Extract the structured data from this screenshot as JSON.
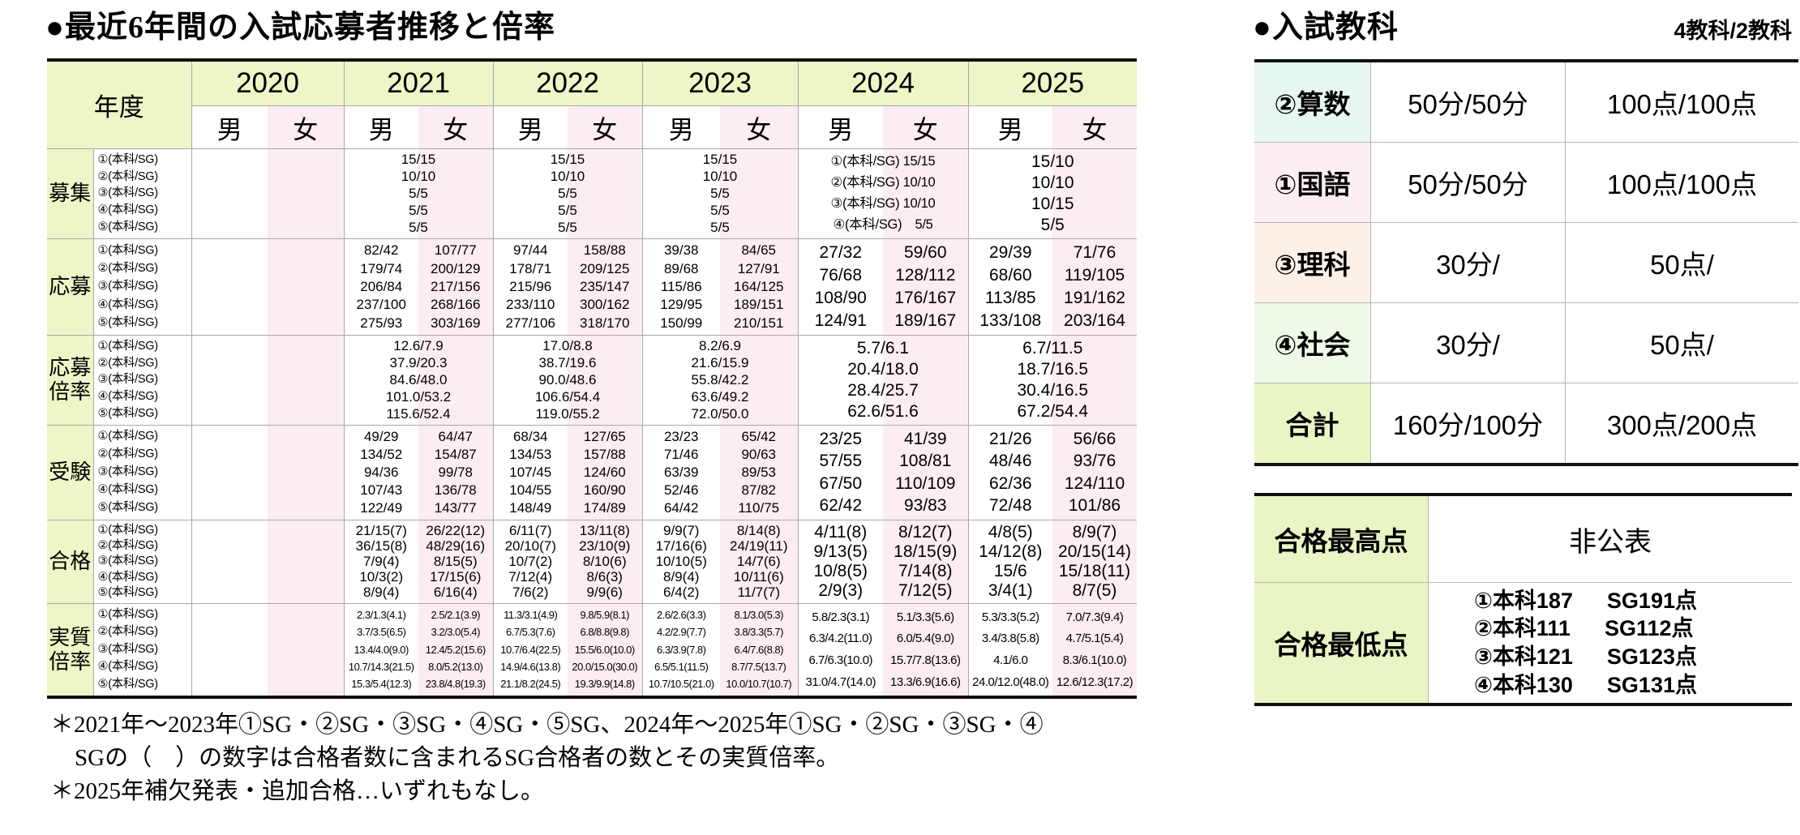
{
  "main": {
    "title": "●最近6年間の入試応募者推移と倍率",
    "table": {
      "header": {
        "year_label": "年度",
        "male": "男",
        "female": "女"
      },
      "years": [
        "2020",
        "2021",
        "2022",
        "2023",
        "2024",
        "2025"
      ],
      "sublabels": [
        "①(本科/SG)",
        "②(本科/SG)",
        "③(本科/SG)",
        "④(本科/SG)",
        "⑤(本科/SG)"
      ],
      "sections": [
        {
          "id": "recruitment",
          "label": "募集",
          "years": {
            "2020": {
              "mode": "span",
              "lines": []
            },
            "2021": {
              "mode": "span",
              "lines": [
                "15/15",
                "10/10",
                "5/5",
                "5/5",
                "5/5"
              ]
            },
            "2022": {
              "mode": "span",
              "lines": [
                "15/15",
                "10/10",
                "5/5",
                "5/5",
                "5/5"
              ]
            },
            "2023": {
              "mode": "span",
              "lines": [
                "15/15",
                "10/10",
                "5/5",
                "5/5",
                "5/5"
              ]
            },
            "2024": {
              "mode": "span",
              "lines": [
                "①(本科/SG) 15/15",
                "②(本科/SG) 10/10",
                "③(本科/SG) 10/10",
                "④(本科/SG)　5/5"
              ]
            },
            "2025": {
              "mode": "span",
              "lines": [
                "15/10",
                "10/10",
                "10/15",
                "5/5"
              ]
            }
          }
        },
        {
          "id": "applicants",
          "label": "応募",
          "years": {
            "2020": {
              "mode": "mf",
              "m": [],
              "f": []
            },
            "2021": {
              "mode": "mf",
              "m": [
                "82/42",
                "179/74",
                "206/84",
                "237/100",
                "275/93"
              ],
              "f": [
                "107/77",
                "200/129",
                "217/156",
                "268/166",
                "303/169"
              ]
            },
            "2022": {
              "mode": "mf",
              "m": [
                "97/44",
                "178/71",
                "215/96",
                "233/110",
                "277/106"
              ],
              "f": [
                "158/88",
                "209/125",
                "235/147",
                "300/162",
                "318/170"
              ]
            },
            "2023": {
              "mode": "mf",
              "m": [
                "39/38",
                "89/68",
                "115/86",
                "129/95",
                "150/99"
              ],
              "f": [
                "84/65",
                "127/91",
                "164/125",
                "189/151",
                "210/151"
              ]
            },
            "2024": {
              "mode": "mf",
              "m": [
                "27/32",
                "76/68",
                "108/90",
                "124/91"
              ],
              "f": [
                "59/60",
                "128/112",
                "176/167",
                "189/167"
              ]
            },
            "2025": {
              "mode": "mf",
              "m": [
                "29/39",
                "68/60",
                "113/85",
                "133/108"
              ],
              "f": [
                "71/76",
                "119/105",
                "191/162",
                "203/164"
              ]
            }
          }
        },
        {
          "id": "application-ratio",
          "label": "応募倍率",
          "years": {
            "2020": {
              "mode": "span",
              "lines": []
            },
            "2021": {
              "mode": "span",
              "lines": [
                "12.6/7.9",
                "37.9/20.3",
                "84.6/48.0",
                "101.0/53.2",
                "115.6/52.4"
              ]
            },
            "2022": {
              "mode": "span",
              "lines": [
                "17.0/8.8",
                "38.7/19.6",
                "90.0/48.6",
                "106.6/54.4",
                "119.0/55.2"
              ]
            },
            "2023": {
              "mode": "span",
              "lines": [
                "8.2/6.9",
                "21.6/15.9",
                "55.8/42.2",
                "63.6/49.2",
                "72.0/50.0"
              ]
            },
            "2024": {
              "mode": "span",
              "lines": [
                "5.7/6.1",
                "20.4/18.0",
                "28.4/25.7",
                "62.6/51.6"
              ]
            },
            "2025": {
              "mode": "span",
              "lines": [
                "6.7/11.5",
                "18.7/16.5",
                "30.4/16.5",
                "67.2/54.4"
              ]
            }
          }
        },
        {
          "id": "examinees",
          "label": "受験",
          "years": {
            "2020": {
              "mode": "mf",
              "m": [],
              "f": []
            },
            "2021": {
              "mode": "mf",
              "m": [
                "49/29",
                "134/52",
                "94/36",
                "107/43",
                "122/49"
              ],
              "f": [
                "64/47",
                "154/87",
                "99/78",
                "136/78",
                "143/77"
              ]
            },
            "2022": {
              "mode": "mf",
              "m": [
                "68/34",
                "134/53",
                "107/45",
                "104/55",
                "148/49"
              ],
              "f": [
                "127/65",
                "157/88",
                "124/60",
                "160/90",
                "174/89"
              ]
            },
            "2023": {
              "mode": "mf",
              "m": [
                "23/23",
                "71/46",
                "63/39",
                "52/46",
                "64/42"
              ],
              "f": [
                "65/42",
                "90/63",
                "89/53",
                "87/82",
                "110/75"
              ]
            },
            "2024": {
              "mode": "mf",
              "m": [
                "23/25",
                "57/55",
                "67/50",
                "62/42"
              ],
              "f": [
                "41/39",
                "108/81",
                "110/109",
                "93/83"
              ]
            },
            "2025": {
              "mode": "mf",
              "m": [
                "21/26",
                "48/46",
                "62/36",
                "72/48"
              ],
              "f": [
                "56/66",
                "93/76",
                "124/110",
                "101/86"
              ]
            }
          }
        },
        {
          "id": "accepted",
          "label": "合格",
          "years": {
            "2020": {
              "mode": "mf",
              "m": [],
              "f": []
            },
            "2021": {
              "mode": "mf",
              "m": [
                "21/15(7)",
                "36/15(8)",
                "7/9(4)",
                "10/3(2)",
                "8/9(4)"
              ],
              "f": [
                "26/22(12)",
                "48/29(16)",
                "8/15(5)",
                "17/15(6)",
                "6/16(4)"
              ]
            },
            "2022": {
              "mode": "mf",
              "m": [
                "6/11(7)",
                "20/10(7)",
                "10/7(2)",
                "7/12(4)",
                "7/6(2)"
              ],
              "f": [
                "13/11(8)",
                "23/10(9)",
                "8/10(6)",
                "8/6(3)",
                "9/9(6)"
              ]
            },
            "2023": {
              "mode": "mf",
              "m": [
                "9/9(7)",
                "17/16(6)",
                "10/10(5)",
                "8/9(4)",
                "6/4(2)"
              ],
              "f": [
                "8/14(8)",
                "24/19(11)",
                "14/7(6)",
                "10/11(6)",
                "11/7(7)"
              ]
            },
            "2024": {
              "mode": "mf",
              "m": [
                "4/11(8)",
                "9/13(5)",
                "10/8(5)",
                "2/9(3)"
              ],
              "f": [
                "8/12(7)",
                "18/15(9)",
                "7/14(8)",
                "7/12(5)"
              ]
            },
            "2025": {
              "mode": "mf",
              "m": [
                "4/8(5)",
                "14/12(8)",
                "15/6",
                "3/4(1)"
              ],
              "f": [
                "8/9(7)",
                "20/15(14)",
                "15/18(11)",
                "8/7(5)"
              ]
            }
          }
        },
        {
          "id": "actual-ratio",
          "label": "実質倍率",
          "years": {
            "2020": {
              "mode": "mf",
              "m": [],
              "f": []
            },
            "2021": {
              "mode": "mf",
              "m": [
                "2.3/1.3(4.1)",
                "3.7/3.5(6.5)",
                "13.4/4.0(9.0)",
                "10.7/14.3(21.5)",
                "15.3/5.4(12.3)"
              ],
              "f": [
                "2.5/2.1(3.9)",
                "3.2/3.0(5.4)",
                "12.4/5.2(15.6)",
                "8.0/5.2(13.0)",
                "23.8/4.8(19.3)"
              ]
            },
            "2022": {
              "mode": "mf",
              "m": [
                "11.3/3.1(4.9)",
                "6.7/5.3(7.6)",
                "10.7/6.4(22.5)",
                "14.9/4.6(13.8)",
                "21.1/8.2(24.5)"
              ],
              "f": [
                "9.8/5.9(8.1)",
                "6.8/8.8(9.8)",
                "15.5/6.0(10.0)",
                "20.0/15.0(30.0)",
                "19.3/9.9(14.8)"
              ]
            },
            "2023": {
              "mode": "mf",
              "m": [
                "2.6/2.6(3.3)",
                "4.2/2.9(7.7)",
                "6.3/3.9(7.8)",
                "6.5/5.1(11.5)",
                "10.7/10.5(21.0)"
              ],
              "f": [
                "8.1/3.0(5.3)",
                "3.8/3.3(5.7)",
                "6.4/7.6(8.8)",
                "8.7/7.5(13.7)",
                "10.0/10.7(10.7)"
              ]
            },
            "2024": {
              "mode": "mf",
              "m": [
                "5.8/2.3(3.1)",
                "6.3/4.2(11.0)",
                "6.7/6.3(10.0)",
                "31.0/4.7(14.0)"
              ],
              "f": [
                "5.1/3.3(5.6)",
                "6.0/5.4(9.0)",
                "15.7/7.8(13.6)",
                "13.3/6.9(16.6)"
              ]
            },
            "2025": {
              "mode": "mf",
              "m": [
                "5.3/3.3(5.2)",
                "3.4/3.8(5.8)",
                "4.1/6.0",
                "24.0/12.0(48.0)"
              ],
              "f": [
                "7.0/7.3(9.4)",
                "4.7/5.1(5.4)",
                "8.3/6.1(10.0)",
                "12.6/12.3(17.2)"
              ]
            }
          }
        }
      ]
    },
    "footnotes": [
      "＊2021年～2023年①SG・②SG・③SG・④SG・⑤SG、2024年～2025年①SG・②SG・③SG・④",
      "SGの（　）の数字は合格者数に含まれるSG合格者の数とその実質倍率。",
      "＊2025年補欠発表・追加合格…いずれもなし。"
    ]
  },
  "subjects": {
    "title": "●入試教科",
    "note": "4教科/2教科",
    "rows": [
      {
        "label": "②算数",
        "time": "50分/50分",
        "points": "100点/100点"
      },
      {
        "label": "①国語",
        "time": "50分/50分",
        "points": "100点/100点"
      },
      {
        "label": "③理科",
        "time": "30分/",
        "points": "50点/"
      },
      {
        "label": "④社会",
        "time": "30分/",
        "points": "50点/"
      },
      {
        "label": "合計",
        "time": "160分/100分",
        "points": "300点/200点"
      }
    ]
  },
  "scores": {
    "max": {
      "label": "合格最高点",
      "value": "非公表"
    },
    "min": {
      "label": "合格最低点",
      "lines": [
        {
          "course": "①本科187",
          "sg": "SG191点"
        },
        {
          "course": "②本科111",
          "sg": "SG112点"
        },
        {
          "course": "③本科121",
          "sg": "SG123点"
        },
        {
          "course": "④本科130",
          "sg": "SG131点"
        }
      ]
    }
  },
  "colors": {
    "header_green": "#edf6c6",
    "female_pink": "#fcecf3",
    "math_cyan": "#e6f7f2",
    "japanese_pink": "#fdeef3",
    "science_peach": "#fdf1e7",
    "social_green": "#eff9e7",
    "total_yellow_green": "#e9f6c3"
  }
}
